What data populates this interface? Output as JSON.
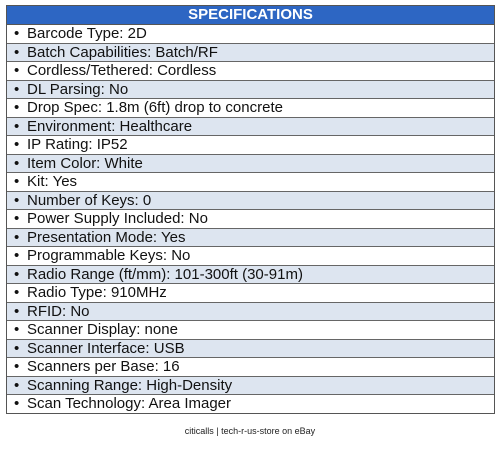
{
  "header": {
    "title": "SPECIFICATIONS"
  },
  "items": [
    "Barcode Type: 2D",
    "Batch Capabilities: Batch/RF",
    "Cordless/Tethered: Cordless",
    "DL Parsing: No",
    "Drop Spec: 1.8m (6ft) drop to concrete",
    "Environment: Healthcare",
    "IP Rating: IP52",
    "Item Color: White",
    "Kit: Yes",
    "Number of Keys: 0",
    "Power Supply Included: No",
    "Presentation Mode: Yes",
    "Programmable Keys: No",
    "Radio Range (ft/mm): 101-300ft (30-91m)",
    "Radio Type: 910MHz",
    "RFID: No",
    "Scanner Display: none",
    "Scanner Interface: USB",
    "Scanners per Base: 16",
    "Scanning Range: High-Density",
    "Scan Technology: Area Imager"
  ],
  "footer": "citicalls | tech-r-us-store on eBay"
}
